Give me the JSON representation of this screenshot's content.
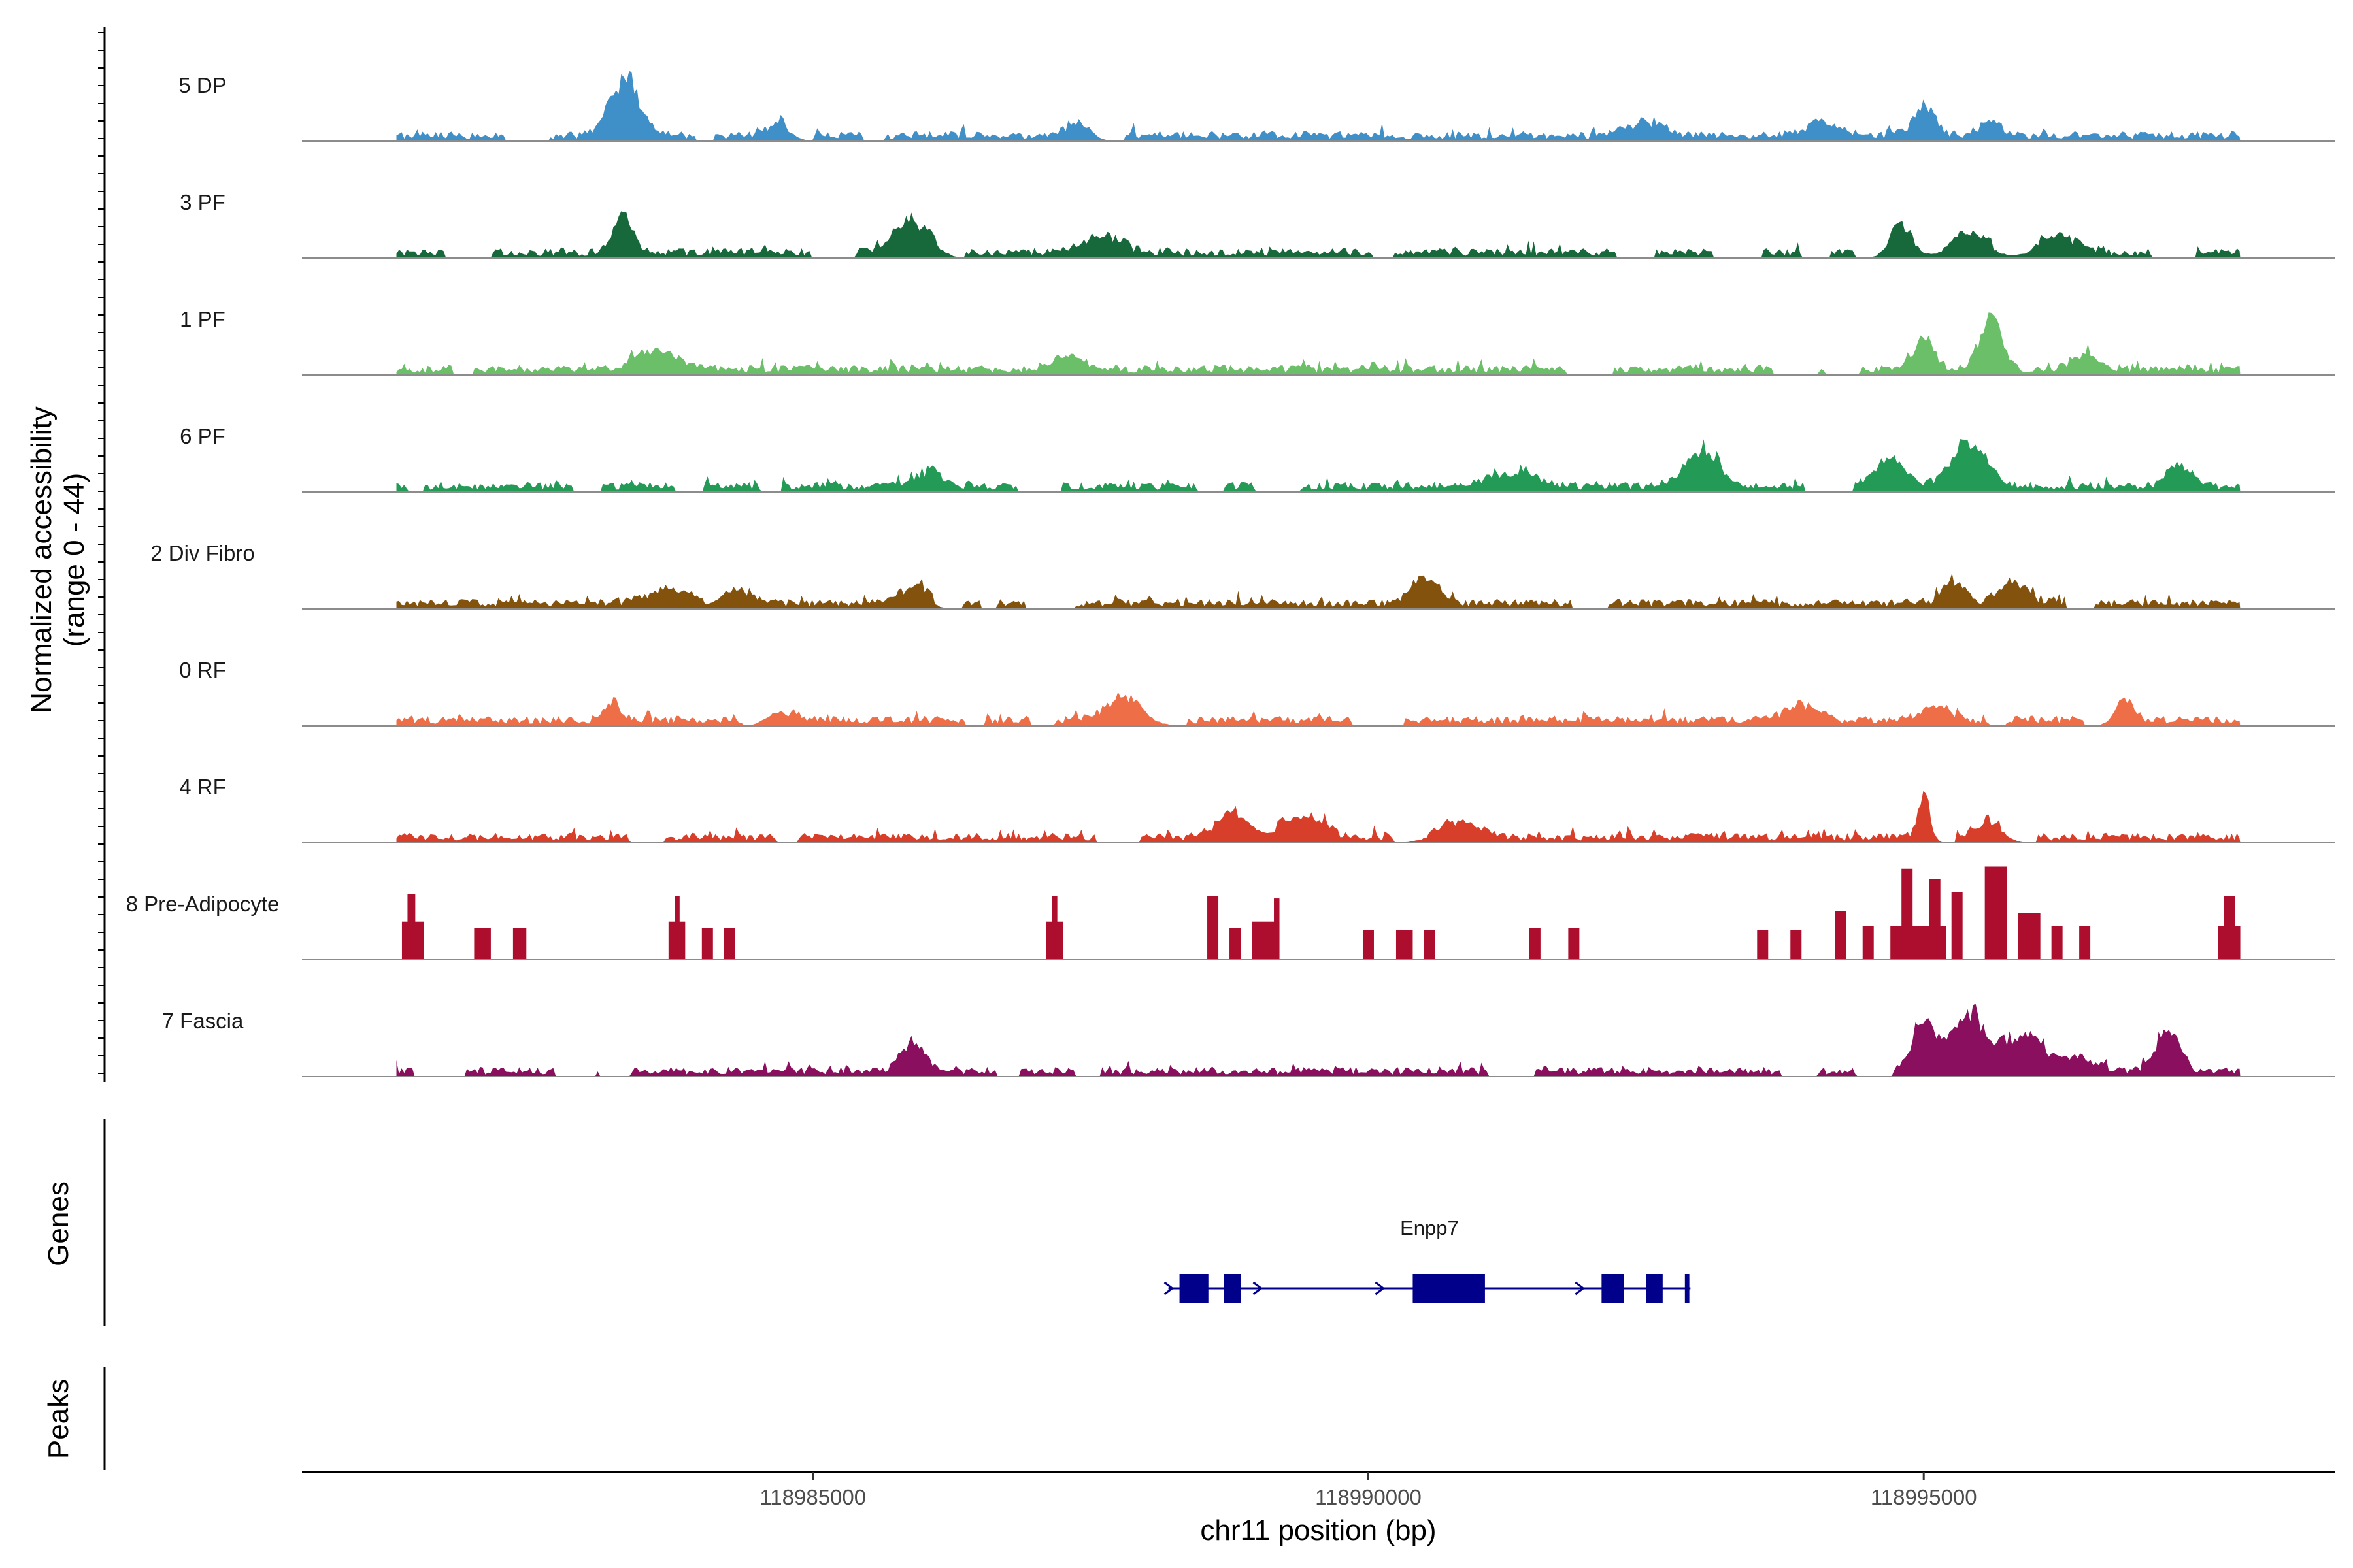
{
  "chart_data": {
    "type": "area",
    "title": "",
    "xlabel": "chr11 position (bp)",
    "ylabel": "Normalized accessibility\n(range 0 - 44)",
    "y_range_text": "(range 0 - 44)",
    "ylim": [
      0,
      44
    ],
    "xlim": [
      118980400,
      118998700
    ],
    "x_ticks": [
      118985000,
      118990000,
      118995000
    ],
    "x_tick_labels": [
      "118985000",
      "118990000",
      "118995000"
    ],
    "signal_start": 118981250,
    "signal_end": 118997850,
    "tracks": [
      {
        "name": "5 DP",
        "color": "#3f8fc9",
        "peaks": [
          [
            118983300,
            28,
            180
          ],
          [
            118984700,
            6,
            150
          ],
          [
            118987400,
            8,
            150
          ],
          [
            118992500,
            7,
            250
          ],
          [
            118994100,
            6,
            220
          ],
          [
            118995000,
            14,
            140
          ],
          [
            118995600,
            8,
            130
          ]
        ]
      },
      {
        "name": "3 PF",
        "color": "#17683a",
        "peaks": [
          [
            118983300,
            20,
            120
          ],
          [
            118985900,
            16,
            220
          ],
          [
            118987600,
            8,
            260
          ],
          [
            118994800,
            13,
            150
          ],
          [
            118995400,
            9,
            250
          ],
          [
            118996200,
            8,
            260
          ]
        ]
      },
      {
        "name": "1 PF",
        "color": "#6abf68",
        "peaks": [
          [
            118983600,
            9,
            250
          ],
          [
            118987300,
            7,
            200
          ],
          [
            118995000,
            14,
            120
          ],
          [
            118995600,
            26,
            140
          ],
          [
            118996500,
            8,
            200
          ]
        ]
      },
      {
        "name": "6 PF",
        "color": "#239a55",
        "peaks": [
          [
            118986100,
            7,
            220
          ],
          [
            118991300,
            9,
            250
          ],
          [
            118993000,
            18,
            200
          ],
          [
            118994700,
            12,
            200
          ],
          [
            118995400,
            20,
            230
          ],
          [
            118997300,
            11,
            150
          ]
        ]
      },
      {
        "name": "2 Div Fibro",
        "color": "#83520d",
        "peaks": [
          [
            118983700,
            7,
            260
          ],
          [
            118984300,
            10,
            180
          ],
          [
            118985900,
            11,
            160
          ],
          [
            118990500,
            12,
            180
          ],
          [
            118995300,
            13,
            150
          ],
          [
            118995800,
            10,
            180
          ]
        ]
      },
      {
        "name": "0 RF",
        "color": "#ee6e48",
        "peaks": [
          [
            118983200,
            9,
            100
          ],
          [
            118984700,
            7,
            160
          ],
          [
            118987800,
            11,
            240
          ],
          [
            118993900,
            8,
            200
          ],
          [
            118995100,
            7,
            200
          ],
          [
            118996800,
            12,
            120
          ]
        ]
      },
      {
        "name": "4 RF",
        "color": "#d83f2a",
        "peaks": [
          [
            118988800,
            13,
            220
          ],
          [
            118989400,
            12,
            250
          ],
          [
            118990800,
            8,
            260
          ],
          [
            118995000,
            21,
            80
          ],
          [
            118995600,
            8,
            160
          ]
        ]
      },
      {
        "name": "8 Pre-Adipocyte",
        "color": "#ad0e2e",
        "peaks": []
      },
      {
        "name": "7 Fascia",
        "color": "#8a0f5e",
        "peaks": [
          [
            118985900,
            14,
            150
          ],
          [
            118995000,
            26,
            140
          ],
          [
            118995400,
            29,
            200
          ],
          [
            118995900,
            19,
            250
          ],
          [
            118997200,
            22,
            140
          ],
          [
            118996400,
            6,
            200
          ]
        ]
      }
    ],
    "adipocyte_blocks": [
      [
        118981300,
        118981500,
        18
      ],
      [
        118981350,
        118981420,
        31
      ],
      [
        118981950,
        118982100,
        15
      ],
      [
        118982300,
        118982420,
        15
      ],
      [
        118983700,
        118983850,
        18
      ],
      [
        118983760,
        118983800,
        30
      ],
      [
        118984000,
        118984100,
        15
      ],
      [
        118984200,
        118984300,
        15
      ],
      [
        118987100,
        118987250,
        18
      ],
      [
        118987150,
        118987200,
        30
      ],
      [
        118988550,
        118988650,
        30
      ],
      [
        118988750,
        118988850,
        15
      ],
      [
        118988950,
        118989200,
        18
      ],
      [
        118989150,
        118989200,
        29
      ],
      [
        118989950,
        118990050,
        14
      ],
      [
        118990250,
        118990400,
        14
      ],
      [
        118990500,
        118990600,
        14
      ],
      [
        118991450,
        118991550,
        15
      ],
      [
        118991800,
        118991900,
        15
      ],
      [
        118993500,
        118993600,
        14
      ],
      [
        118993800,
        118993900,
        14
      ],
      [
        118994200,
        118994300,
        23
      ],
      [
        118994450,
        118994550,
        16
      ],
      [
        118994700,
        118995200,
        16
      ],
      [
        118994800,
        118994900,
        43
      ],
      [
        118995050,
        118995150,
        38
      ],
      [
        118995250,
        118995350,
        32
      ],
      [
        118995550,
        118995750,
        44
      ],
      [
        118995650,
        118995750,
        30
      ],
      [
        118995850,
        118996050,
        22
      ],
      [
        118996150,
        118996250,
        16
      ],
      [
        118996400,
        118996500,
        16
      ],
      [
        118997700,
        118997800,
        30
      ],
      [
        118997650,
        118997850,
        16
      ]
    ],
    "genes": [
      {
        "name": "Enpp7",
        "start": 118988200,
        "end": 118992900,
        "strand": "+",
        "exons": [
          [
            118988300,
            118988560
          ],
          [
            118988700,
            118988850
          ],
          [
            118990400,
            118991050
          ],
          [
            118992100,
            118992300
          ],
          [
            118992500,
            118992650
          ],
          [
            118992850,
            118992890
          ]
        ],
        "thin_exons": [
          [
            118988200,
            118988260
          ]
        ]
      }
    ]
  },
  "panels": {
    "genes_label": "Genes",
    "peaks_label": "Peaks"
  }
}
